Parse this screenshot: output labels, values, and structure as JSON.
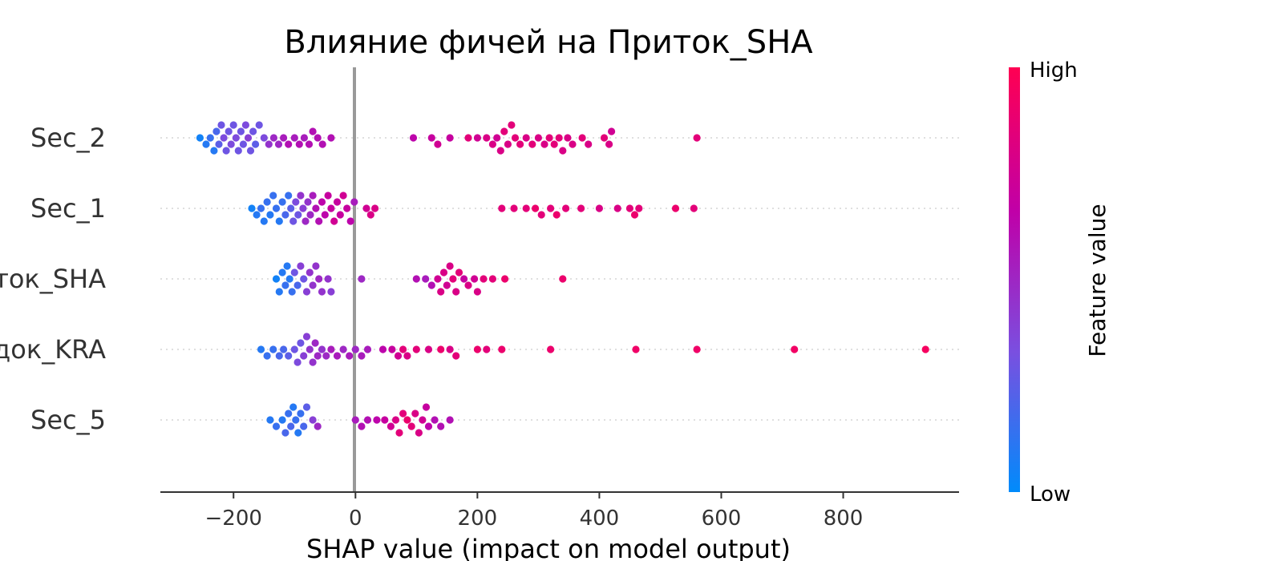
{
  "chart_data": {
    "type": "scatter",
    "subtype": "shap-beeswarm",
    "title": "Влияние фичей на Приток_SHA",
    "xlabel": "SHAP value (impact on model output)",
    "xlim": [
      -320,
      990
    ],
    "xticks": [
      {
        "value": -200,
        "label": "−200"
      },
      {
        "value": 0,
        "label": "0"
      },
      {
        "value": 200,
        "label": "200"
      },
      {
        "value": 400,
        "label": "400"
      },
      {
        "value": 600,
        "label": "600"
      },
      {
        "value": 800,
        "label": "800"
      }
    ],
    "zero_line": true,
    "features": [
      {
        "name": "Sec_2",
        "points": [
          [
            -255,
            0.05
          ],
          [
            -245,
            0.1
          ],
          [
            -238,
            0.15
          ],
          [
            -232,
            0.1
          ],
          [
            -228,
            0.2
          ],
          [
            -224,
            0.25
          ],
          [
            -220,
            0.3
          ],
          [
            -216,
            0.35
          ],
          [
            -212,
            0.3
          ],
          [
            -208,
            0.3
          ],
          [
            -204,
            0.35
          ],
          [
            -200,
            0.3
          ],
          [
            -196,
            0.35
          ],
          [
            -192,
            0.3
          ],
          [
            -188,
            0.3
          ],
          [
            -184,
            0.3
          ],
          [
            -180,
            0.35
          ],
          [
            -176,
            0.4
          ],
          [
            -172,
            0.3
          ],
          [
            -168,
            0.3
          ],
          [
            -164,
            0.25
          ],
          [
            -158,
            0.3
          ],
          [
            -150,
            0.35
          ],
          [
            -142,
            0.45
          ],
          [
            -134,
            0.5
          ],
          [
            -126,
            0.5
          ],
          [
            -118,
            0.55
          ],
          [
            -110,
            0.6
          ],
          [
            -100,
            0.55
          ],
          [
            -92,
            0.6
          ],
          [
            -84,
            0.55
          ],
          [
            -76,
            0.6
          ],
          [
            -70,
            0.6
          ],
          [
            -62,
            0.6
          ],
          [
            -54,
            0.6
          ],
          [
            -40,
            0.6
          ],
          [
            95,
            0.65
          ],
          [
            125,
            0.7
          ],
          [
            135,
            0.75
          ],
          [
            155,
            0.7
          ],
          [
            185,
            0.85
          ],
          [
            200,
            0.75
          ],
          [
            215,
            0.8
          ],
          [
            225,
            0.8
          ],
          [
            232,
            0.75
          ],
          [
            238,
            0.8
          ],
          [
            244,
            0.85
          ],
          [
            250,
            0.8
          ],
          [
            256,
            0.85
          ],
          [
            262,
            0.85
          ],
          [
            270,
            0.85
          ],
          [
            280,
            0.8
          ],
          [
            290,
            0.85
          ],
          [
            300,
            0.8
          ],
          [
            310,
            0.8
          ],
          [
            318,
            0.85
          ],
          [
            326,
            0.85
          ],
          [
            334,
            0.85
          ],
          [
            340,
            0.8
          ],
          [
            348,
            0.8
          ],
          [
            356,
            0.8
          ],
          [
            372,
            0.85
          ],
          [
            382,
            0.8
          ],
          [
            408,
            0.85
          ],
          [
            416,
            0.8
          ],
          [
            420,
            0.75
          ],
          [
            560,
            0.85
          ]
        ]
      },
      {
        "name": "Sec_1",
        "points": [
          [
            -170,
            0.05
          ],
          [
            -162,
            0.1
          ],
          [
            -155,
            0.15
          ],
          [
            -150,
            0.1
          ],
          [
            -145,
            0.15
          ],
          [
            -140,
            0.1
          ],
          [
            -135,
            0.15
          ],
          [
            -130,
            0.15
          ],
          [
            -125,
            0.1
          ],
          [
            -120,
            0.15
          ],
          [
            -115,
            0.2
          ],
          [
            -110,
            0.15
          ],
          [
            -106,
            0.25
          ],
          [
            -102,
            0.3
          ],
          [
            -98,
            0.35
          ],
          [
            -94,
            0.3
          ],
          [
            -90,
            0.45
          ],
          [
            -86,
            0.4
          ],
          [
            -82,
            0.5
          ],
          [
            -78,
            0.45
          ],
          [
            -74,
            0.5
          ],
          [
            -70,
            0.55
          ],
          [
            -65,
            0.6
          ],
          [
            -60,
            0.6
          ],
          [
            -55,
            0.65
          ],
          [
            -50,
            0.65
          ],
          [
            -45,
            0.7
          ],
          [
            -40,
            0.7
          ],
          [
            -35,
            0.75
          ],
          [
            -30,
            0.7
          ],
          [
            -25,
            0.7
          ],
          [
            -20,
            0.75
          ],
          [
            -14,
            0.7
          ],
          [
            -8,
            0.65
          ],
          [
            -2,
            0.55
          ],
          [
            18,
            0.75
          ],
          [
            25,
            0.8
          ],
          [
            32,
            0.8
          ],
          [
            240,
            0.85
          ],
          [
            260,
            0.85
          ],
          [
            280,
            0.85
          ],
          [
            295,
            0.9
          ],
          [
            305,
            0.85
          ],
          [
            320,
            0.85
          ],
          [
            330,
            0.9
          ],
          [
            345,
            0.85
          ],
          [
            370,
            0.85
          ],
          [
            400,
            0.8
          ],
          [
            430,
            0.8
          ],
          [
            450,
            0.85
          ],
          [
            458,
            0.9
          ],
          [
            465,
            0.85
          ],
          [
            525,
            0.9
          ],
          [
            555,
            0.85
          ]
        ]
      },
      {
        "name": "Приток_SHA",
        "points": [
          [
            -130,
            0.05
          ],
          [
            -125,
            0.1
          ],
          [
            -120,
            0.1
          ],
          [
            -115,
            0.15
          ],
          [
            -112,
            0.1
          ],
          [
            -108,
            0.1
          ],
          [
            -104,
            0.15
          ],
          [
            -100,
            0.3
          ],
          [
            -95,
            0.2
          ],
          [
            -90,
            0.4
          ],
          [
            -85,
            0.3
          ],
          [
            -80,
            0.4
          ],
          [
            -75,
            0.45
          ],
          [
            -70,
            0.45
          ],
          [
            -65,
            0.45
          ],
          [
            -60,
            0.5
          ],
          [
            -55,
            0.45
          ],
          [
            -45,
            0.45
          ],
          [
            -40,
            0.4
          ],
          [
            10,
            0.5
          ],
          [
            100,
            0.6
          ],
          [
            115,
            0.55
          ],
          [
            125,
            0.6
          ],
          [
            135,
            0.75
          ],
          [
            140,
            0.8
          ],
          [
            145,
            0.8
          ],
          [
            150,
            0.75
          ],
          [
            155,
            0.8
          ],
          [
            160,
            0.85
          ],
          [
            165,
            0.8
          ],
          [
            170,
            0.85
          ],
          [
            178,
            0.7
          ],
          [
            185,
            0.8
          ],
          [
            195,
            0.75
          ],
          [
            200,
            0.8
          ],
          [
            210,
            0.85
          ],
          [
            225,
            0.85
          ],
          [
            245,
            0.9
          ],
          [
            340,
            0.9
          ]
        ]
      },
      {
        "name": "Паводок_KRA",
        "points": [
          [
            -155,
            0.1
          ],
          [
            -145,
            0.15
          ],
          [
            -135,
            0.15
          ],
          [
            -125,
            0.2
          ],
          [
            -118,
            0.2
          ],
          [
            -110,
            0.25
          ],
          [
            -100,
            0.3
          ],
          [
            -95,
            0.35
          ],
          [
            -90,
            0.3
          ],
          [
            -85,
            0.4
          ],
          [
            -80,
            0.4
          ],
          [
            -75,
            0.45
          ],
          [
            -70,
            0.45
          ],
          [
            -66,
            0.5
          ],
          [
            -62,
            0.5
          ],
          [
            -55,
            0.45
          ],
          [
            -48,
            0.5
          ],
          [
            -40,
            0.55
          ],
          [
            -30,
            0.55
          ],
          [
            -20,
            0.5
          ],
          [
            -10,
            0.55
          ],
          [
            0,
            0.5
          ],
          [
            10,
            0.55
          ],
          [
            20,
            0.55
          ],
          [
            45,
            0.65
          ],
          [
            60,
            0.7
          ],
          [
            70,
            0.75
          ],
          [
            78,
            0.85
          ],
          [
            85,
            0.8
          ],
          [
            100,
            0.85
          ],
          [
            120,
            0.8
          ],
          [
            140,
            0.9
          ],
          [
            155,
            0.8
          ],
          [
            165,
            0.85
          ],
          [
            200,
            0.9
          ],
          [
            215,
            0.85
          ],
          [
            240,
            0.9
          ],
          [
            320,
            0.9
          ],
          [
            460,
            0.92
          ],
          [
            560,
            0.92
          ],
          [
            720,
            0.93
          ],
          [
            935,
            0.95
          ]
        ]
      },
      {
        "name": "Sec_5",
        "points": [
          [
            -140,
            0.1
          ],
          [
            -130,
            0.15
          ],
          [
            -120,
            0.1
          ],
          [
            -115,
            0.2
          ],
          [
            -110,
            0.15
          ],
          [
            -106,
            0.2
          ],
          [
            -102,
            0.1
          ],
          [
            -98,
            0.15
          ],
          [
            -94,
            0.1
          ],
          [
            -90,
            0.15
          ],
          [
            -85,
            0.2
          ],
          [
            -80,
            0.25
          ],
          [
            -70,
            0.4
          ],
          [
            -62,
            0.5
          ],
          [
            0,
            0.55
          ],
          [
            10,
            0.6
          ],
          [
            20,
            0.6
          ],
          [
            35,
            0.65
          ],
          [
            48,
            0.7
          ],
          [
            58,
            0.75
          ],
          [
            66,
            0.8
          ],
          [
            72,
            0.85
          ],
          [
            78,
            0.85
          ],
          [
            85,
            0.9
          ],
          [
            92,
            0.85
          ],
          [
            98,
            0.8
          ],
          [
            104,
            0.8
          ],
          [
            110,
            0.75
          ],
          [
            116,
            0.7
          ],
          [
            120,
            0.65
          ],
          [
            130,
            0.6
          ],
          [
            140,
            0.6
          ],
          [
            155,
            0.6
          ]
        ]
      }
    ],
    "colorbar": {
      "title": "Feature value",
      "high_label": "High",
      "low_label": "Low",
      "colors": [
        "#008bfb",
        "#7a4fe0",
        "#c000a8",
        "#ff0052"
      ]
    }
  }
}
